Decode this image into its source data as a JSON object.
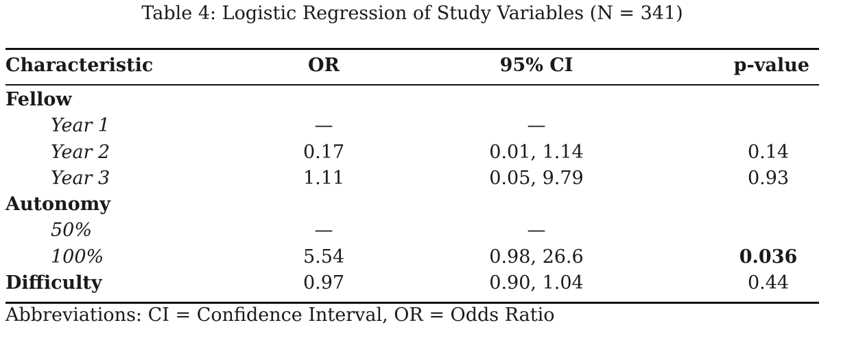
{
  "caption": "Table 4: Logistic Regression of Study Variables (N = 341)",
  "headers": {
    "characteristic": "Characteristic",
    "or": "OR",
    "ci": "95% CI",
    "p": "p-value"
  },
  "rows": [
    {
      "label": "Fellow",
      "or": "",
      "ci": "",
      "p": ""
    },
    {
      "label": "Year 1",
      "or": "—",
      "ci": "—",
      "p": ""
    },
    {
      "label": "Year 2",
      "or": "0.17",
      "ci": "0.01, 1.14",
      "p": "0.14"
    },
    {
      "label": "Year 3",
      "or": "1.11",
      "ci": "0.05, 9.79",
      "p": "0.93"
    },
    {
      "label": "Autonomy",
      "or": "",
      "ci": "",
      "p": ""
    },
    {
      "label": "50%",
      "or": "—",
      "ci": "—",
      "p": ""
    },
    {
      "label": "100%",
      "or": "5.54",
      "ci": "0.98, 26.6",
      "p": "0.036"
    },
    {
      "label": "Difficulty",
      "or": "0.97",
      "ci": "0.90, 1.04",
      "p": "0.44"
    }
  ],
  "footnote": "Abbreviations: CI = Confidence Interval, OR = Odds Ratio"
}
